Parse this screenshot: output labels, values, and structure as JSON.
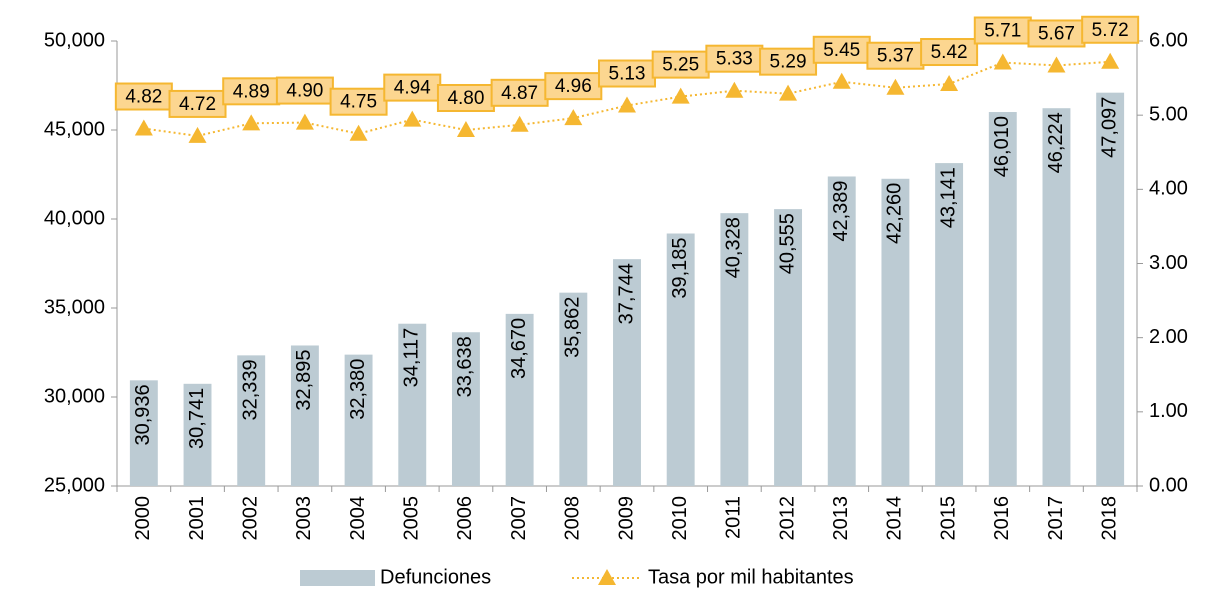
{
  "chart_data": {
    "type": "bar",
    "categories": [
      "2000",
      "2001",
      "2002",
      "2003",
      "2004",
      "2005",
      "2006",
      "2007",
      "2008",
      "2009",
      "2010",
      "2011",
      "2012",
      "2013",
      "2014",
      "2015",
      "2016",
      "2017",
      "2018"
    ],
    "series": [
      {
        "name": "Defunciones",
        "type": "bar",
        "axis": "y",
        "color": "#bccbd3",
        "values": [
          30936,
          30741,
          32339,
          32895,
          32380,
          34117,
          33638,
          34670,
          35862,
          37744,
          39185,
          40328,
          40555,
          42389,
          42260,
          43141,
          46010,
          46224,
          47097
        ],
        "value_labels": [
          "30,936",
          "30,741",
          "32,339",
          "32,895",
          "32,380",
          "34,117",
          "33,638",
          "34,670",
          "35,862",
          "37,744",
          "39,185",
          "40,328",
          "40,555",
          "42,389",
          "42,260",
          "43,141",
          "46,010",
          "46,224",
          "47,097"
        ]
      },
      {
        "name": "Tasa por mil habitantes",
        "type": "line",
        "axis": "y2",
        "color": "#f5b731",
        "values": [
          4.82,
          4.72,
          4.89,
          4.9,
          4.75,
          4.94,
          4.8,
          4.87,
          4.96,
          5.13,
          5.25,
          5.33,
          5.29,
          5.45,
          5.37,
          5.42,
          5.71,
          5.67,
          5.72
        ],
        "value_labels": [
          "4.82",
          "4.72",
          "4.89",
          "4.90",
          "4.75",
          "4.94",
          "4.80",
          "4.87",
          "4.96",
          "5.13",
          "5.25",
          "5.33",
          "5.29",
          "5.45",
          "5.37",
          "5.42",
          "5.71",
          "5.67",
          "5.72"
        ]
      }
    ],
    "ylim": [
      25000,
      50000
    ],
    "yticks": [
      {
        "value": 25000,
        "label": "25,000"
      },
      {
        "value": 30000,
        "label": "30,000"
      },
      {
        "value": 35000,
        "label": "35,000"
      },
      {
        "value": 40000,
        "label": "40,000"
      },
      {
        "value": 45000,
        "label": "45,000"
      },
      {
        "value": 50000,
        "label": "50,000"
      }
    ],
    "y2lim": [
      0,
      6
    ],
    "y2ticks": [
      {
        "value": 0,
        "label": "0.00"
      },
      {
        "value": 1,
        "label": "1.00"
      },
      {
        "value": 2,
        "label": "2.00"
      },
      {
        "value": 3,
        "label": "3.00"
      },
      {
        "value": 4,
        "label": "4.00"
      },
      {
        "value": 5,
        "label": "5.00"
      },
      {
        "value": 6,
        "label": "6.00"
      }
    ],
    "legend": "bottom"
  }
}
